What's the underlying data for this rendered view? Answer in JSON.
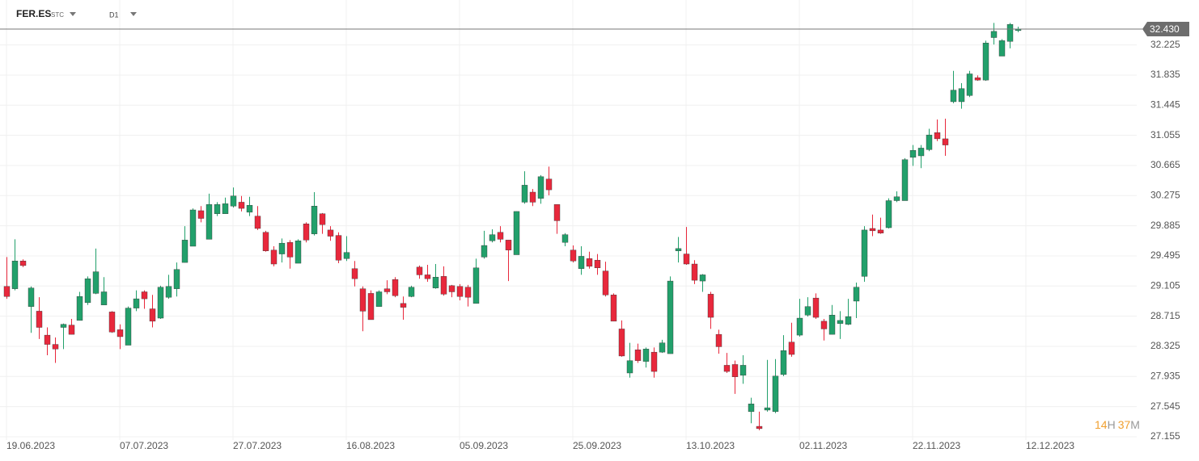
{
  "chart_data": {
    "type": "candlestick",
    "symbol": "FER.ES",
    "market": "STC",
    "timeframe": "D1",
    "up_color": "#22a06b",
    "down_color": "#e8283c",
    "grid": true,
    "ylim": [
      27.113,
      32.806
    ],
    "yticks": [
      27.155,
      27.545,
      27.935,
      28.325,
      28.715,
      29.105,
      29.495,
      29.885,
      30.275,
      30.665,
      31.055,
      31.445,
      31.835,
      32.225
    ],
    "last_price": {
      "value": 32.43,
      "label": "32.430"
    },
    "countdown": {
      "hours": "14",
      "hours_unit": "H",
      "minutes": "37",
      "minutes_unit": "M"
    },
    "categories": [
      "19.06.2023",
      null,
      null,
      null,
      null,
      null,
      null,
      null,
      null,
      null,
      null,
      null,
      null,
      null,
      "07.07.2023",
      null,
      null,
      null,
      null,
      null,
      null,
      null,
      null,
      null,
      null,
      null,
      null,
      null,
      "27.07.2023",
      null,
      null,
      null,
      null,
      null,
      null,
      null,
      null,
      null,
      null,
      null,
      null,
      null,
      "16.08.2023",
      null,
      null,
      null,
      null,
      null,
      null,
      null,
      null,
      null,
      null,
      null,
      null,
      null,
      "05.09.2023",
      null,
      null,
      null,
      null,
      null,
      null,
      null,
      null,
      null,
      null,
      null,
      null,
      null,
      "25.09.2023",
      null,
      null,
      null,
      null,
      null,
      null,
      null,
      null,
      null,
      null,
      null,
      null,
      null,
      "13.10.2023",
      null,
      null,
      null,
      null,
      null,
      null,
      null,
      null,
      null,
      null,
      null,
      null,
      null,
      "02.11.2023",
      null,
      null,
      null,
      null,
      null,
      null,
      null,
      null,
      null,
      null,
      null,
      null,
      null,
      "22.11.2023",
      null,
      null,
      null,
      null,
      null,
      null,
      null,
      null,
      null,
      null,
      null,
      null,
      null,
      "12.12.2023"
    ],
    "open": [
      29.1,
      29.07,
      29.43,
      28.84,
      28.78,
      28.47,
      28.35,
      28.57,
      28.6,
      28.66,
      28.89,
      29.01,
      28.86,
      28.77,
      28.54,
      28.34,
      28.82,
      29.03,
      28.81,
      28.69,
      28.96,
      29.07,
      29.41,
      29.62,
      30.08,
      29.71,
      30.04,
      30.04,
      30.14,
      30.19,
      30.06,
      30.01,
      29.8,
      29.57,
      29.52,
      29.67,
      29.4,
      29.91,
      29.78,
      30.04,
      29.83,
      29.76,
      29.46,
      29.33,
      29.07,
      29.01,
      28.84,
      29.07,
      29.19,
      28.88,
      28.97,
      29.35,
      29.25,
      29.08,
      29.23,
      29.11,
      29.1,
      29.09,
      28.88,
      29.48,
      29.69,
      29.8,
      29.7,
      29.51,
      30.19,
      30.32,
      30.24,
      30.49,
      30.16,
      29.67,
      29.57,
      29.33,
      29.46,
      29.44,
      29.3,
      28.99,
      28.55,
      27.98,
      28.28,
      28.13,
      28.25,
      28.25,
      28.23,
      29.56,
      29.52,
      29.39,
      29.17,
      29.0,
      28.48,
      28.08,
      28.09,
      27.95,
      27.48,
      27.29,
      27.5,
      27.48,
      27.96,
      28.38,
      28.47,
      28.73,
      28.95,
      28.65,
      28.48,
      28.62,
      28.61,
      28.91,
      29.23,
      29.85,
      29.83,
      29.86,
      30.21,
      30.21,
      30.77,
      30.79,
      30.87,
      31.09,
      31.01,
      31.49,
      31.49,
      31.57,
      31.8,
      31.77,
      32.32,
      32.08,
      32.27,
      32.41,
      null
    ],
    "high": [
      29.48,
      29.71,
      29.45,
      29.1,
      28.96,
      28.57,
      28.44,
      28.62,
      28.68,
      29.03,
      29.23,
      29.59,
      29.22,
      28.78,
      28.61,
      28.84,
      29.05,
      29.05,
      28.99,
      29.11,
      29.25,
      29.41,
      29.88,
      30.11,
      30.14,
      30.3,
      30.19,
      30.25,
      30.38,
      30.27,
      30.26,
      30.14,
      29.82,
      29.62,
      29.72,
      29.7,
      29.71,
      29.93,
      30.32,
      30.05,
      29.88,
      29.8,
      29.75,
      29.43,
      29.1,
      29.05,
      29.05,
      29.18,
      29.22,
      28.97,
      29.11,
      29.37,
      29.38,
      29.39,
      29.36,
      29.12,
      29.13,
      29.12,
      29.46,
      29.82,
      29.84,
      29.88,
      29.7,
      30.07,
      30.59,
      30.36,
      30.54,
      30.65,
      30.16,
      29.79,
      29.63,
      29.62,
      29.55,
      29.52,
      29.42,
      29.01,
      28.66,
      28.37,
      28.36,
      28.31,
      28.31,
      28.41,
      29.23,
      29.74,
      29.87,
      29.44,
      29.26,
      29.03,
      28.54,
      28.24,
      28.14,
      28.21,
      27.66,
      27.48,
      28.15,
      28.16,
      28.47,
      28.63,
      28.94,
      28.96,
      29.01,
      28.68,
      28.86,
      28.78,
      28.94,
      29.15,
      29.88,
      30.03,
      29.99,
      30.24,
      30.33,
      30.76,
      30.93,
      30.93,
      31.14,
      31.26,
      31.27,
      31.89,
      31.73,
      31.89,
      31.83,
      32.28,
      32.51,
      32.3,
      32.51,
      32.46,
      null
    ],
    "low": [
      28.94,
      29.05,
      29.35,
      28.5,
      28.42,
      28.21,
      28.11,
      28.29,
      28.48,
      28.66,
      28.86,
      29.0,
      28.86,
      28.5,
      28.29,
      28.34,
      28.78,
      28.81,
      28.57,
      28.68,
      28.94,
      28.97,
      29.41,
      29.62,
      29.93,
      29.71,
      30.01,
      30.04,
      30.12,
      30.07,
      30.01,
      29.83,
      29.55,
      29.36,
      29.41,
      29.33,
      29.4,
      29.67,
      29.76,
      29.78,
      29.69,
      29.4,
      29.43,
      29.1,
      28.52,
      28.67,
      28.84,
      29.0,
      28.96,
      28.67,
      28.96,
      29.2,
      29.16,
      29.07,
      28.98,
      28.96,
      28.92,
      28.84,
      28.88,
      29.46,
      29.67,
      29.67,
      29.17,
      29.51,
      30.17,
      30.14,
      30.17,
      30.28,
      29.78,
      29.62,
      29.41,
      29.25,
      29.33,
      29.25,
      28.97,
      28.65,
      28.19,
      27.92,
      28.11,
      28.05,
      27.92,
      28.24,
      28.23,
      29.41,
      29.38,
      29.13,
      29.03,
      28.55,
      28.23,
      27.98,
      27.71,
      27.84,
      27.33,
      27.24,
      27.48,
      27.46,
      27.94,
      28.19,
      28.45,
      28.71,
      28.68,
      28.4,
      28.48,
      28.42,
      28.6,
      28.69,
      29.16,
      29.75,
      29.78,
      29.85,
      30.19,
      30.21,
      30.66,
      30.63,
      30.85,
      30.98,
      30.79,
      31.47,
      31.4,
      31.55,
      31.76,
      31.76,
      32.23,
      32.08,
      32.18,
      32.39,
      null
    ],
    "close": [
      28.97,
      29.43,
      29.37,
      29.08,
      28.57,
      28.35,
      28.29,
      28.61,
      28.48,
      28.97,
      29.2,
      29.29,
      29.03,
      28.51,
      28.45,
      28.82,
      28.94,
      28.94,
      28.65,
      29.09,
      29.1,
      29.32,
      29.7,
      30.09,
      29.98,
      30.16,
      30.16,
      30.17,
      30.27,
      30.11,
      30.15,
      29.85,
      29.56,
      29.39,
      29.66,
      29.48,
      29.69,
      29.7,
      30.14,
      29.9,
      29.75,
      29.44,
      29.54,
      29.2,
      28.78,
      28.67,
      29.03,
      29.03,
      28.98,
      28.83,
      29.09,
      29.25,
      29.2,
      29.22,
      29.0,
      29.03,
      28.97,
      28.96,
      29.34,
      29.63,
      29.77,
      29.71,
      29.57,
      30.07,
      30.41,
      30.19,
      30.52,
      30.35,
      29.95,
      29.77,
      29.43,
      29.49,
      29.36,
      29.34,
      28.99,
      28.65,
      28.2,
      28.14,
      28.14,
      28.29,
      28.0,
      28.37,
      29.17,
      29.59,
      29.39,
      29.18,
      29.25,
      28.7,
      28.32,
      28.0,
      27.93,
      28.08,
      27.58,
      27.26,
      27.53,
      27.94,
      28.27,
      28.22,
      28.69,
      28.84,
      28.7,
      28.55,
      28.73,
      28.66,
      28.71,
      29.09,
      29.83,
      29.82,
      29.79,
      30.21,
      30.26,
      30.74,
      30.86,
      30.89,
      31.06,
      31.01,
      30.93,
      31.64,
      31.66,
      31.85,
      31.77,
      32.25,
      32.4,
      32.28,
      32.49,
      32.43,
      null
    ]
  }
}
